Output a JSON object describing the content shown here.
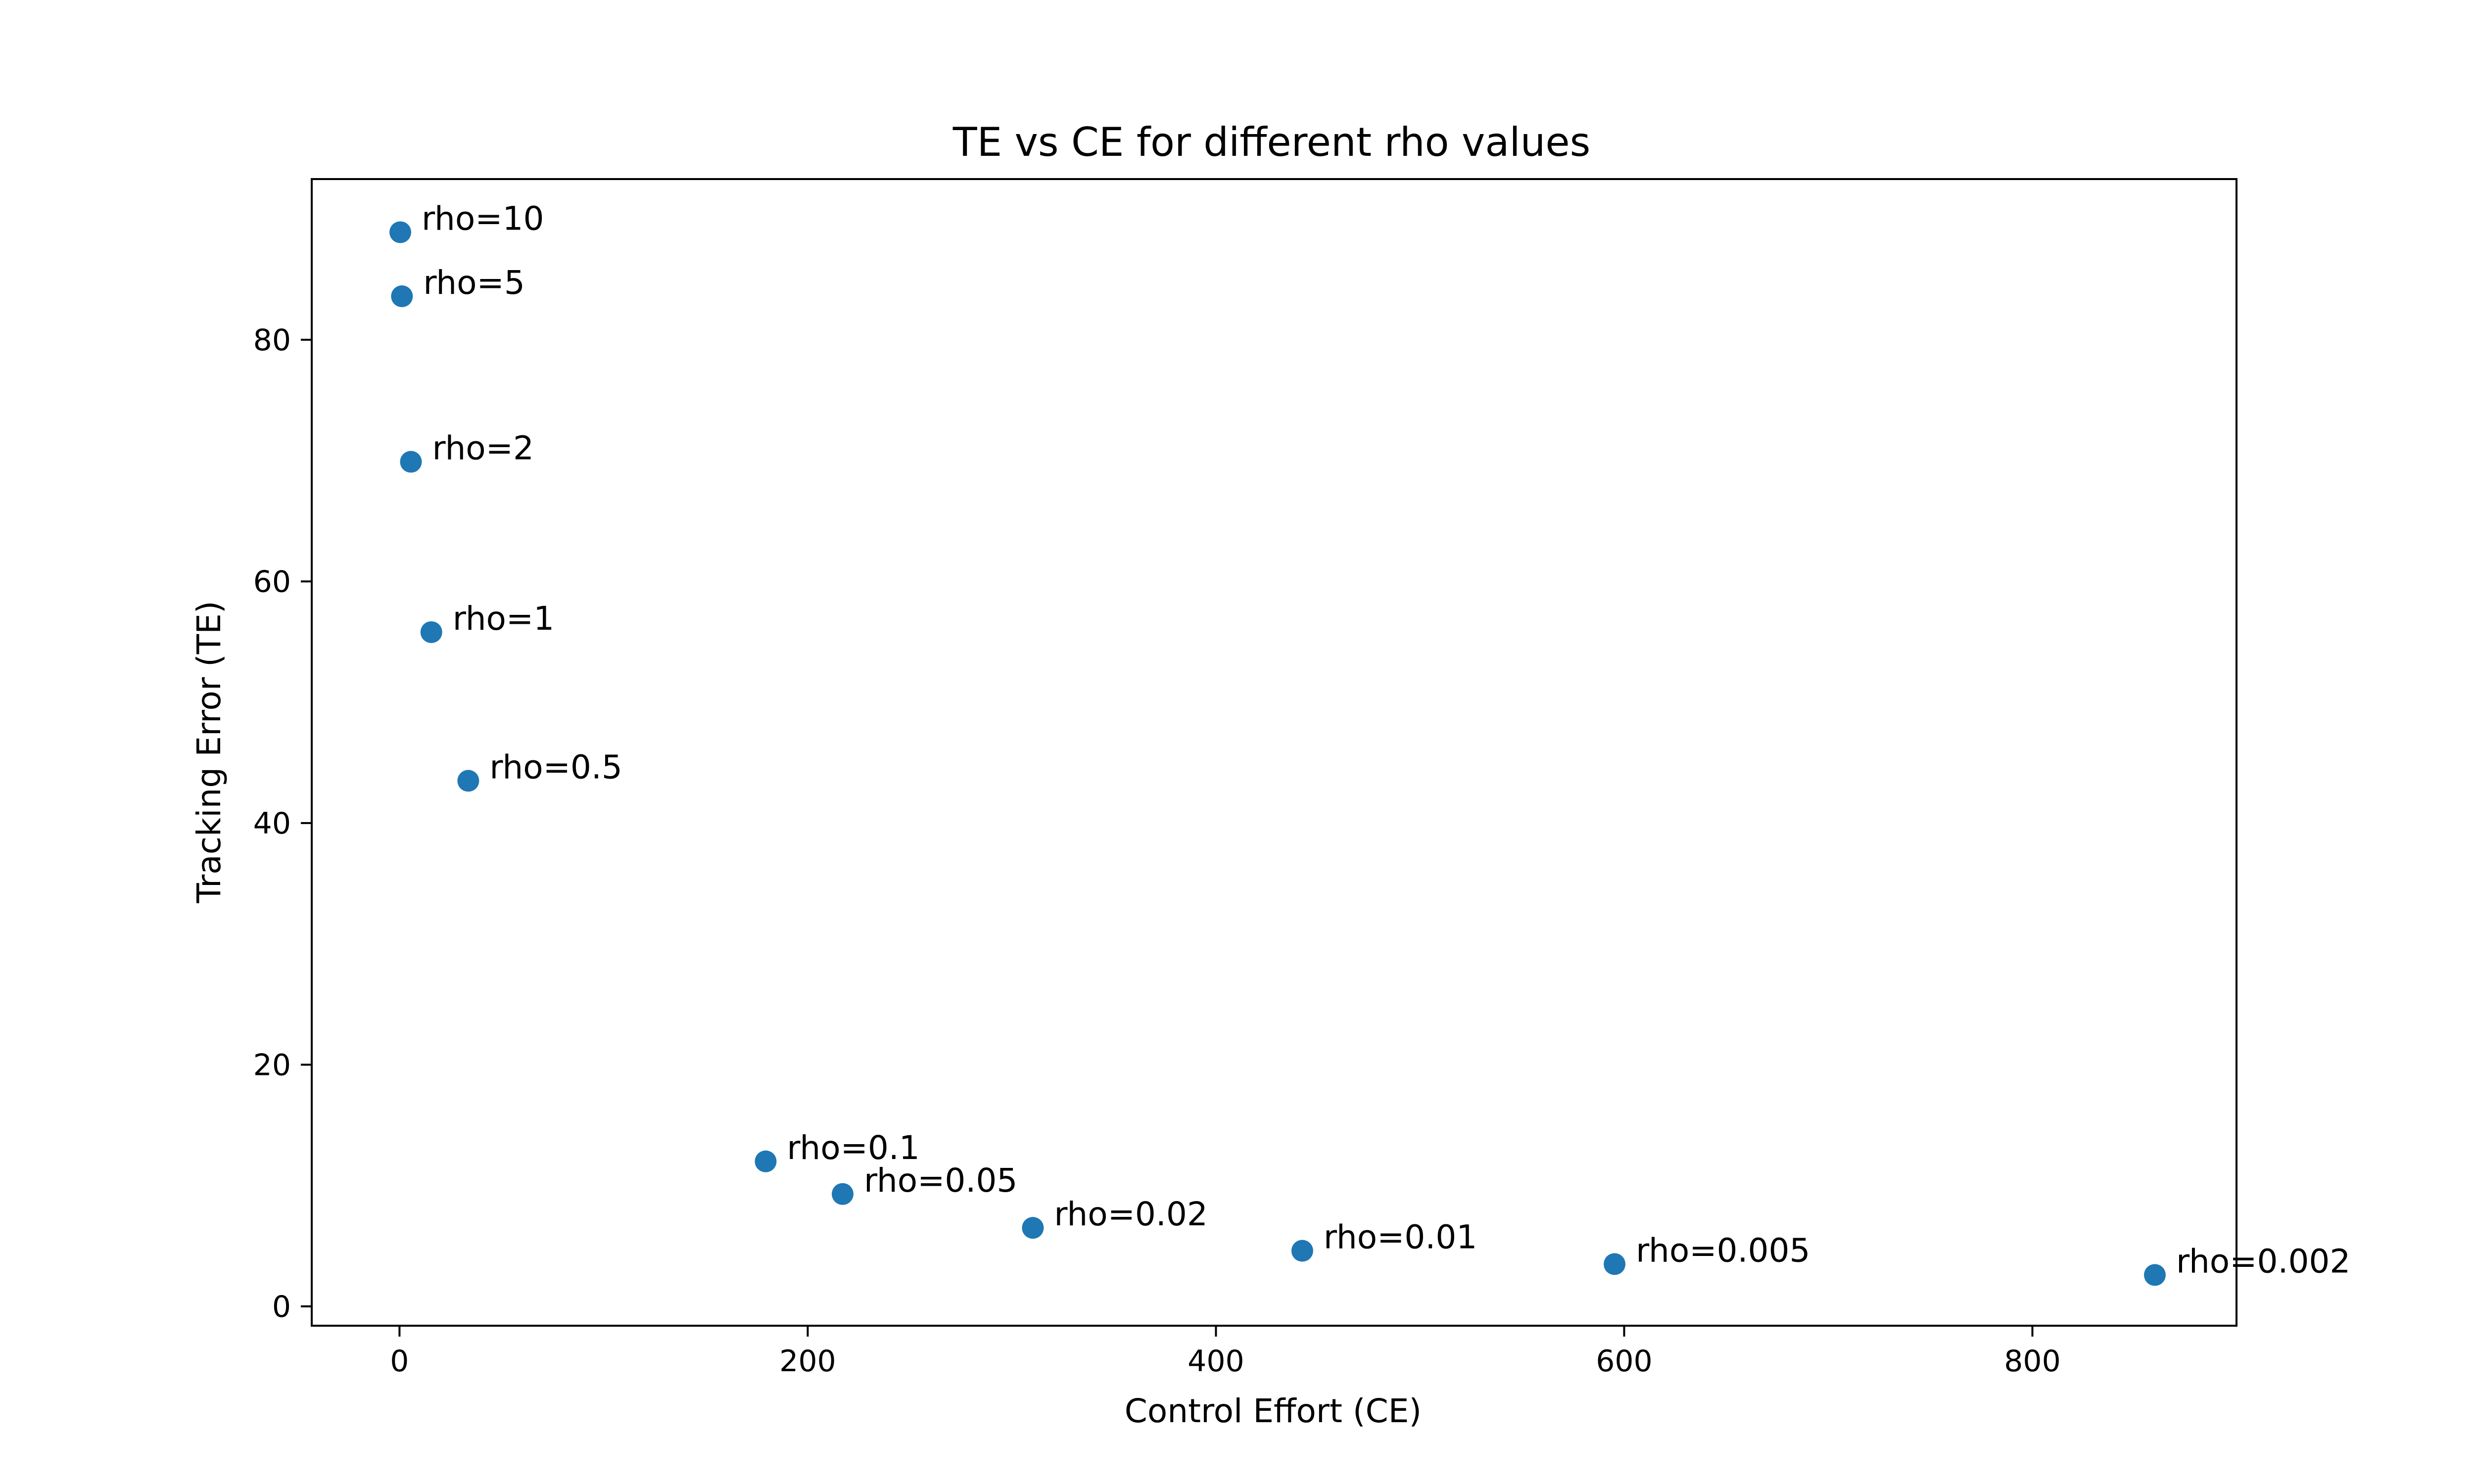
{
  "chart_data": {
    "type": "scatter",
    "title": "TE vs CE for different rho values",
    "xlabel": "Control Effort (CE)",
    "ylabel": "Tracking Error (TE)",
    "xlim": [
      -43,
      900
    ],
    "ylim": [
      -1.6,
      93.3
    ],
    "xticks": [
      0,
      200,
      400,
      600,
      800
    ],
    "yticks": [
      0,
      20,
      40,
      60,
      80
    ],
    "grid": false,
    "marker_color": "#1f77b4",
    "points": [
      {
        "x": 0.4,
        "y": 88.9,
        "label": "rho=10"
      },
      {
        "x": 1.2,
        "y": 83.6,
        "label": "rho=5"
      },
      {
        "x": 5.6,
        "y": 69.9,
        "label": "rho=2"
      },
      {
        "x": 15.6,
        "y": 55.8,
        "label": "rho=1"
      },
      {
        "x": 33.7,
        "y": 43.5,
        "label": "rho=0.5"
      },
      {
        "x": 179.4,
        "y": 12.0,
        "label": "rho=0.1"
      },
      {
        "x": 217.1,
        "y": 9.3,
        "label": "rho=0.05"
      },
      {
        "x": 310.3,
        "y": 6.5,
        "label": "rho=0.02"
      },
      {
        "x": 442.3,
        "y": 4.6,
        "label": "rho=0.01"
      },
      {
        "x": 595.3,
        "y": 3.5,
        "label": "rho=0.005"
      },
      {
        "x": 860.0,
        "y": 2.6,
        "label": "rho=0.002"
      }
    ]
  }
}
